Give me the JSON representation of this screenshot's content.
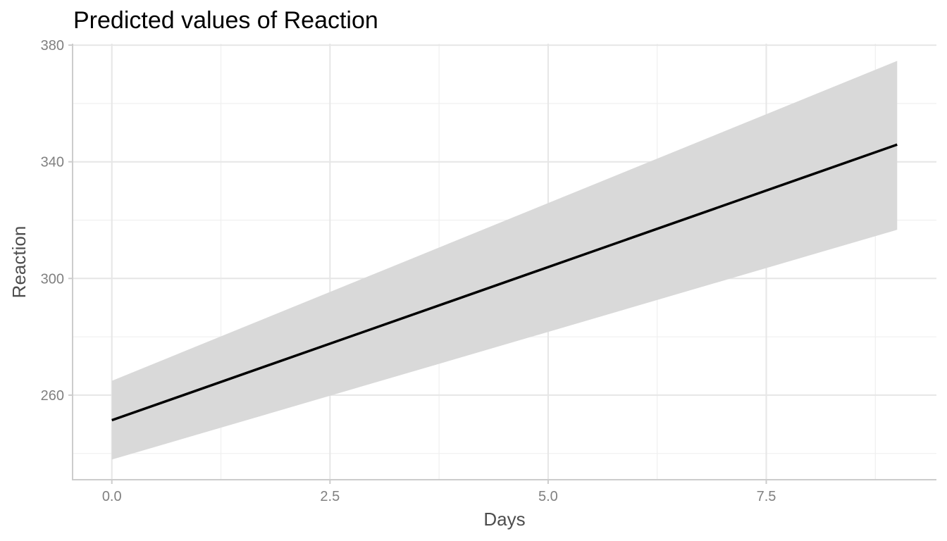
{
  "chart_data": {
    "type": "line",
    "title": "Predicted values of Reaction",
    "xlabel": "Days",
    "ylabel": "Reaction",
    "xlim": [
      -0.45,
      9.45
    ],
    "ylim": [
      231,
      380.5
    ],
    "x_ticks": [
      {
        "value": 0,
        "label": "0.0"
      },
      {
        "value": 2.5,
        "label": "2.5"
      },
      {
        "value": 5,
        "label": "5.0"
      },
      {
        "value": 7.5,
        "label": "7.5"
      }
    ],
    "y_ticks": [
      {
        "value": 260,
        "label": "260"
      },
      {
        "value": 300,
        "label": "300"
      },
      {
        "value": 340,
        "label": "340"
      },
      {
        "value": 380,
        "label": "380"
      }
    ],
    "x_minor": [
      1.25,
      3.75,
      6.25,
      8.75
    ],
    "y_minor": [
      240,
      280,
      320,
      360
    ],
    "grid": true,
    "legend": "none",
    "series": [
      {
        "x": [
          0,
          9
        ],
        "y": [
          251.4,
          345.9
        ],
        "ci_low": [
          237.9,
          316.7
        ],
        "ci_high": [
          264.9,
          374.6
        ],
        "line_color": "#000000",
        "ribbon_color": "#d9d9d9"
      }
    ]
  }
}
